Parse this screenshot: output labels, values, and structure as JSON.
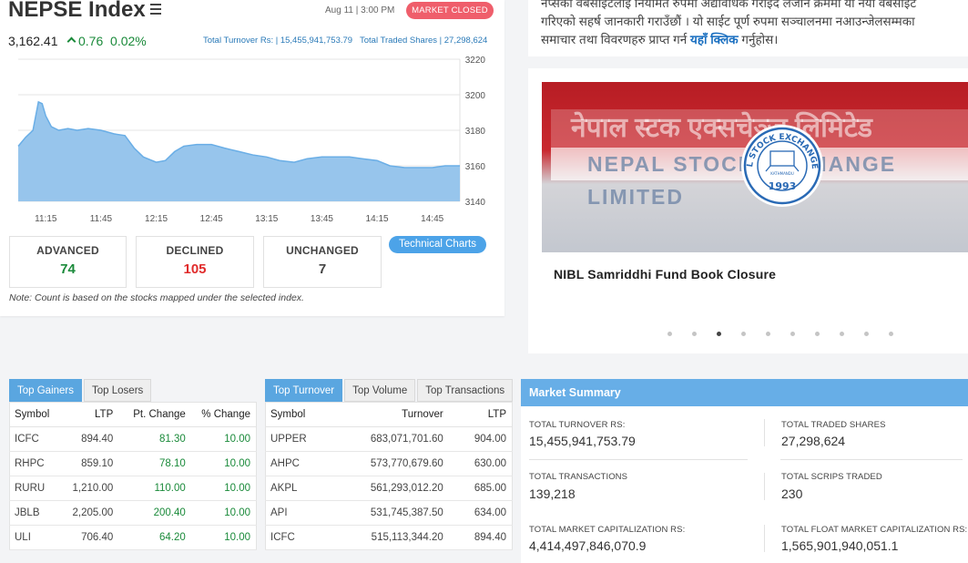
{
  "index": {
    "title": "NEPSE Index",
    "as_of": "Aug 11 | 3:00 PM",
    "status_badge": "MARKET CLOSED",
    "value": "3,162.41",
    "change": "0.76",
    "pct_change": "0.02%",
    "turnover_text": "Total Turnover Rs: | 15,455,941,753.79",
    "shares_text": "Total Traded Shares | 27,298,624",
    "colors": {
      "fill": "#97c5ec",
      "line": "#6aaee6",
      "up": "#1a8a3a",
      "down": "#e02b2b"
    }
  },
  "chart_data": {
    "type": "area",
    "x_ticks": [
      "11:15",
      "11:45",
      "12:15",
      "12:45",
      "13:15",
      "13:45",
      "14:15",
      "14:45"
    ],
    "y_ticks": [
      "3220",
      "3200",
      "3180",
      "3160",
      "3140"
    ],
    "ylim": [
      3140,
      3220
    ],
    "x_range": [
      "11:00",
      "15:00"
    ],
    "points": [
      [
        "11:00",
        3171
      ],
      [
        "11:04",
        3176
      ],
      [
        "11:08",
        3180
      ],
      [
        "11:11",
        3196
      ],
      [
        "11:13",
        3195
      ],
      [
        "11:15",
        3188
      ],
      [
        "11:18",
        3182
      ],
      [
        "11:22",
        3180
      ],
      [
        "11:27",
        3181
      ],
      [
        "11:32",
        3180
      ],
      [
        "11:38",
        3181
      ],
      [
        "11:45",
        3180
      ],
      [
        "11:52",
        3178
      ],
      [
        "11:58",
        3177
      ],
      [
        "12:03",
        3170
      ],
      [
        "12:08",
        3165
      ],
      [
        "12:15",
        3162
      ],
      [
        "12:20",
        3163
      ],
      [
        "12:25",
        3168
      ],
      [
        "12:30",
        3171
      ],
      [
        "12:37",
        3172
      ],
      [
        "12:45",
        3172
      ],
      [
        "12:52",
        3170
      ],
      [
        "13:00",
        3168
      ],
      [
        "13:08",
        3166
      ],
      [
        "13:15",
        3165
      ],
      [
        "13:22",
        3163
      ],
      [
        "13:30",
        3162
      ],
      [
        "13:37",
        3164
      ],
      [
        "13:45",
        3165
      ],
      [
        "13:52",
        3165
      ],
      [
        "14:00",
        3165
      ],
      [
        "14:07",
        3164
      ],
      [
        "14:15",
        3163
      ],
      [
        "14:22",
        3160
      ],
      [
        "14:30",
        3159
      ],
      [
        "14:37",
        3159
      ],
      [
        "14:45",
        3159
      ],
      [
        "14:52",
        3160
      ],
      [
        "15:00",
        3160
      ]
    ],
    "grid": true
  },
  "breadth": {
    "advanced_label": "ADVANCED",
    "advanced": "74",
    "declined_label": "DECLINED",
    "declined": "105",
    "unchanged_label": "UNCHANGED",
    "unchanged": "7"
  },
  "technical_button": "Technical Charts",
  "note": "Note: Count is based on the stocks mapped under the selected index.",
  "notice": {
    "line1": "नेप्सेको वेबसाईटलाई नियमित रुपमा अद्यावधिक गराईदै लजान क्रममा यो नया वेबसाईट",
    "line2": "गरिएको सहर्ष जानकारी गराउँछौं । यो साईट पूर्ण रुपमा सञ्चालनमा नआउन्जेलसम्मका",
    "line3_pre": "समाचार तथा विवरणहरु प्राप्त गर्न ",
    "link": "यहाँ क्लिक",
    "line3_post": " गर्नुहोस।"
  },
  "news": {
    "image_sign_np": "नेपाल स्टक एक्सचेञ्ज लिमिटेड",
    "image_sign_en": "NEPAL STOCK EXCHANGE LIMITED",
    "seal_text": "NEPAL STOCK EXCHANGE LTD.",
    "seal_year": "1993",
    "seal_city": "KATHMANDU",
    "title": "NIBL Samriddhi Fund Book Closure",
    "dot_count": 10,
    "active_dot": 2
  },
  "gainers": {
    "tabs": [
      "Top Gainers",
      "Top Losers"
    ],
    "headers": [
      "Symbol",
      "LTP",
      "Pt. Change",
      "% Change"
    ],
    "rows": [
      [
        "ICFC",
        "894.40",
        "81.30",
        "10.00"
      ],
      [
        "RHPC",
        "859.10",
        "78.10",
        "10.00"
      ],
      [
        "RURU",
        "1,210.00",
        "110.00",
        "10.00"
      ],
      [
        "JBLB",
        "2,205.00",
        "200.40",
        "10.00"
      ],
      [
        "ULI",
        "706.40",
        "64.20",
        "10.00"
      ]
    ]
  },
  "turnover": {
    "tabs": [
      "Top Turnover",
      "Top Volume",
      "Top Transactions"
    ],
    "headers": [
      "Symbol",
      "Turnover",
      "LTP"
    ],
    "rows": [
      [
        "UPPER",
        "683,071,701.60",
        "904.00"
      ],
      [
        "AHPC",
        "573,770,679.60",
        "630.00"
      ],
      [
        "AKPL",
        "561,293,012.20",
        "685.00"
      ],
      [
        "API",
        "531,745,387.50",
        "634.00"
      ],
      [
        "ICFC",
        "515,113,344.20",
        "894.40"
      ]
    ]
  },
  "summary": {
    "title": "Market Summary",
    "total_turnover_label": "TOTAL TURNOVER RS:",
    "total_turnover": "15,455,941,753.79",
    "total_shares_label": "TOTAL TRADED SHARES",
    "total_shares": "27,298,624",
    "total_transactions_label": "TOTAL TRANSACTIONS",
    "total_transactions": "139,218",
    "total_scrips_label": "TOTAL SCRIPS TRADED",
    "total_scrips": "230",
    "market_cap_label": "TOTAL MARKET CAPITALIZATION RS:",
    "market_cap": "4,414,497,846,070.9",
    "float_cap_label": "TOTAL FLOAT MARKET CAPITALIZATION RS:",
    "float_cap": "1,565,901,940,051.1"
  }
}
